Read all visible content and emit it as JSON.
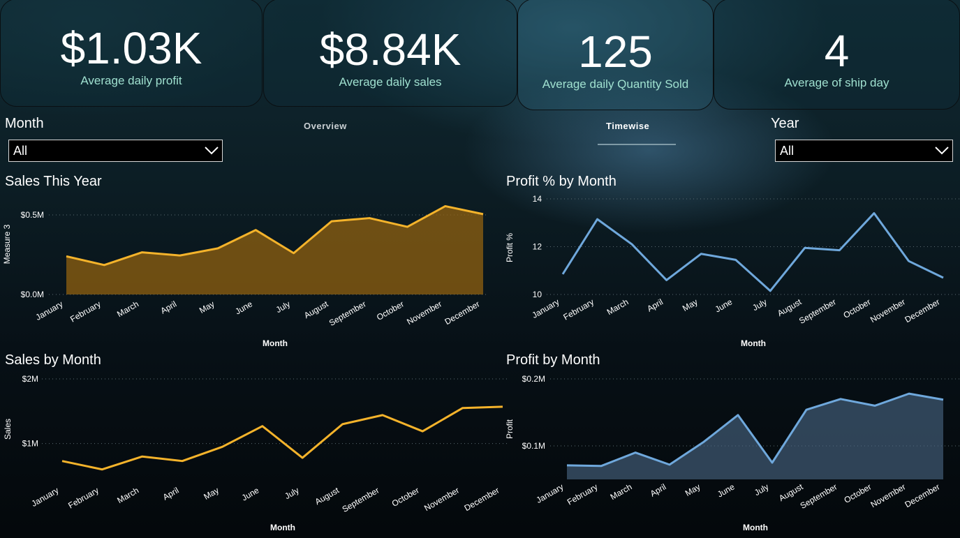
{
  "kpis": [
    {
      "value": "$1.03K",
      "label": "Average daily profit"
    },
    {
      "value": "$8.84K",
      "label": "Average daily sales"
    },
    {
      "value": "125",
      "label": "Average daily Quantity Sold"
    },
    {
      "value": "4",
      "label": "Average of ship day"
    }
  ],
  "filters": {
    "month": {
      "label": "Month",
      "selected": "All"
    },
    "year": {
      "label": "Year",
      "selected": "All"
    }
  },
  "nav": {
    "overview": "Overview",
    "timewise": "Timewise"
  },
  "colors": {
    "orange": "#f4b32b",
    "blue": "#6fa8dc",
    "axis_text": "#ffffff"
  },
  "chart_data": [
    {
      "type": "area",
      "title": "Sales This Year",
      "xlabel": "Month",
      "ylabel": "Measure 3",
      "categories": [
        "January",
        "February",
        "March",
        "April",
        "May",
        "June",
        "July",
        "August",
        "September",
        "October",
        "November",
        "December"
      ],
      "values": [
        0.24,
        0.185,
        0.265,
        0.245,
        0.29,
        0.405,
        0.26,
        0.46,
        0.48,
        0.425,
        0.555,
        0.505
      ],
      "ylim": [
        0,
        0.5
      ],
      "yticks": [
        {
          "v": 0,
          "label": "$0.0M"
        },
        {
          "v": 0.5,
          "label": "$0.5M"
        }
      ],
      "color": "#f4b32b"
    },
    {
      "type": "line",
      "title": "Profit % by Month",
      "xlabel": "Month",
      "ylabel": "Profit %",
      "categories": [
        "January",
        "February",
        "March",
        "April",
        "May",
        "June",
        "July",
        "August",
        "September",
        "October",
        "November",
        "December"
      ],
      "values": [
        10.85,
        13.15,
        12.1,
        10.6,
        11.7,
        11.45,
        10.15,
        11.95,
        11.85,
        13.4,
        11.4,
        10.7
      ],
      "ylim": [
        10,
        14
      ],
      "yticks": [
        {
          "v": 10,
          "label": "10"
        },
        {
          "v": 12,
          "label": "12"
        },
        {
          "v": 14,
          "label": "14"
        }
      ],
      "color": "#6fa8dc"
    },
    {
      "type": "line",
      "title": "Sales by Month",
      "xlabel": "Month",
      "ylabel": "Sales",
      "categories": [
        "January",
        "February",
        "March",
        "April",
        "May",
        "June",
        "July",
        "August",
        "September",
        "October",
        "November",
        "December"
      ],
      "values": [
        0.73,
        0.6,
        0.8,
        0.73,
        0.95,
        1.27,
        0.78,
        1.3,
        1.44,
        1.19,
        1.55,
        1.57
      ],
      "ylim": [
        0.5,
        2.0
      ],
      "yticks": [
        {
          "v": 1,
          "label": "$1M"
        },
        {
          "v": 2,
          "label": "$2M"
        }
      ],
      "color": "#f4b32b"
    },
    {
      "type": "area",
      "title": "Profit by Month",
      "xlabel": "Month",
      "ylabel": "Profit",
      "categories": [
        "January",
        "February",
        "March",
        "April",
        "May",
        "June",
        "July",
        "August",
        "September",
        "October",
        "November",
        "December"
      ],
      "values": [
        0.071,
        0.07,
        0.09,
        0.072,
        0.106,
        0.146,
        0.075,
        0.154,
        0.17,
        0.16,
        0.178,
        0.169
      ],
      "ylim": [
        0.05,
        0.2
      ],
      "yticks": [
        {
          "v": 0.1,
          "label": "$0.1M"
        },
        {
          "v": 0.2,
          "label": "$0.2M"
        }
      ],
      "color": "#6fa8dc"
    }
  ]
}
